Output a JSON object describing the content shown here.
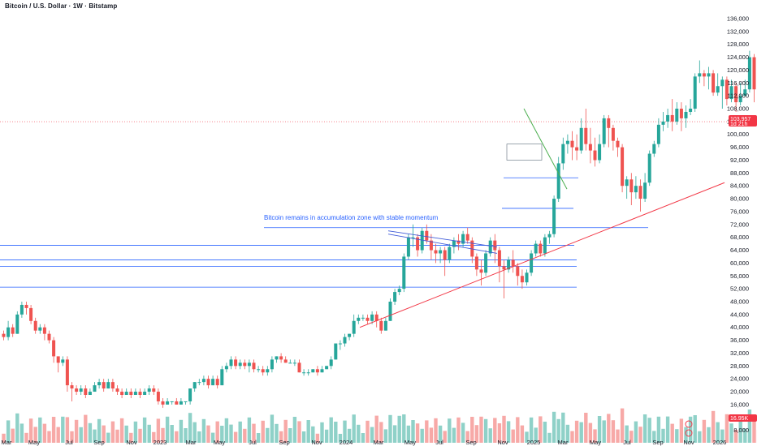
{
  "title": "Bitcoin / U.S. Dollar · 1W · Bitstamp",
  "annotation": "Bitcoin remains in accumulation zone with stable momentum",
  "price_tag": {
    "price": "103,957",
    "countdown": "1d 21h",
    "volume": "16.95K"
  },
  "colors": {
    "up": "#26a69a",
    "down": "#ef5350",
    "up_vol": "#8fd1c8",
    "down_vol": "#f7a9a7",
    "hline": "#2962ff",
    "trendline": "#f23645",
    "wedge": "#3f5bd8",
    "flag": "#4caf50"
  },
  "chart_data": {
    "type": "candlestick",
    "title": "Bitcoin / U.S. Dollar · 1W · Bitstamp",
    "y_ticks": [
      "136,000",
      "132,000",
      "128,000",
      "124,000",
      "120,000",
      "116,000",
      "112,000",
      "108,000",
      "104,000",
      "100,000",
      "96,000",
      "92,000",
      "88,000",
      "84,000",
      "80,000",
      "76,000",
      "72,000",
      "68,000",
      "64,000",
      "60,000",
      "56,000",
      "52,000",
      "48,000",
      "44,000",
      "40,000",
      "36,000",
      "32,000",
      "28,000",
      "24,000",
      "20,000",
      "16,000",
      "12,000",
      "8,000"
    ],
    "x_ticks": [
      "Mar",
      "May",
      "Jul",
      "Sep",
      "Nov",
      "2023",
      "Mar",
      "May",
      "Jul",
      "Sep",
      "Nov",
      "2024",
      "Mar",
      "May",
      "Jul",
      "Sep",
      "Nov",
      "2025",
      "Mar",
      "May",
      "Jul",
      "Sep",
      "Nov",
      "2026"
    ],
    "ylim": [
      4000,
      138000
    ],
    "last_price": 103957,
    "horizontal_levels": [
      71000,
      65500,
      61000,
      59000,
      52500,
      86500,
      77000
    ],
    "trendline": {
      "from": [
        "2024-01-08",
        40000
      ],
      "to": [
        "2026-01-05",
        85000
      ]
    },
    "candles": [
      [
        38,
        37,
        39,
        36
      ],
      [
        37,
        40,
        42,
        36
      ],
      [
        40,
        38,
        41,
        37
      ],
      [
        38,
        44,
        45,
        38
      ],
      [
        44,
        47,
        48,
        43
      ],
      [
        47,
        46,
        48,
        44
      ],
      [
        46,
        42,
        47,
        41
      ],
      [
        42,
        39,
        43,
        38
      ],
      [
        39,
        40,
        41,
        38
      ],
      [
        40,
        38,
        41,
        36
      ],
      [
        38,
        36,
        39,
        35
      ],
      [
        36,
        31,
        37,
        29
      ],
      [
        31,
        29,
        31,
        26
      ],
      [
        29,
        30,
        31,
        28
      ],
      [
        30,
        22,
        31,
        20
      ],
      [
        22,
        21,
        23,
        17
      ],
      [
        21,
        20,
        22,
        19
      ],
      [
        20,
        21,
        22,
        19
      ],
      [
        21,
        19,
        22,
        18
      ],
      [
        19,
        20,
        21,
        19
      ],
      [
        20,
        22,
        23,
        20
      ],
      [
        22,
        23,
        24,
        21
      ],
      [
        23,
        21,
        24,
        20
      ],
      [
        21,
        23,
        24,
        21
      ],
      [
        23,
        21,
        24,
        20
      ],
      [
        21,
        20,
        22,
        19
      ],
      [
        20,
        19,
        21,
        18
      ],
      [
        19,
        20,
        21,
        19
      ],
      [
        20,
        19,
        21,
        18
      ],
      [
        19,
        20,
        21,
        19
      ],
      [
        20,
        19,
        21,
        18
      ],
      [
        19,
        20,
        21,
        19
      ],
      [
        20,
        21,
        22,
        19
      ],
      [
        21,
        20,
        22,
        19
      ],
      [
        20,
        17,
        21,
        16
      ],
      [
        17,
        16,
        18,
        15
      ],
      [
        16,
        17,
        18,
        16
      ],
      [
        17,
        17,
        17,
        16
      ],
      [
        17,
        16,
        18,
        16
      ],
      [
        16,
        17,
        18,
        16
      ],
      [
        17,
        17,
        17,
        16
      ],
      [
        17,
        21,
        21,
        16
      ],
      [
        21,
        23,
        23,
        20
      ],
      [
        23,
        23,
        24,
        22
      ],
      [
        23,
        24,
        25,
        22
      ],
      [
        24,
        22,
        25,
        21
      ],
      [
        22,
        24,
        25,
        22
      ],
      [
        24,
        22,
        25,
        21
      ],
      [
        22,
        27,
        28,
        22
      ],
      [
        27,
        28,
        29,
        26
      ],
      [
        28,
        30,
        31,
        27
      ],
      [
        30,
        28,
        31,
        27
      ],
      [
        28,
        29,
        30,
        27
      ],
      [
        29,
        28,
        30,
        27
      ],
      [
        28,
        29,
        30,
        26
      ],
      [
        29,
        27,
        30,
        26
      ],
      [
        27,
        27,
        28,
        26
      ],
      [
        27,
        26,
        28,
        25
      ],
      [
        26,
        27,
        28,
        25
      ],
      [
        27,
        30,
        31,
        26
      ],
      [
        30,
        31,
        31,
        29
      ],
      [
        31,
        30,
        32,
        29
      ],
      [
        30,
        29,
        31,
        29
      ],
      [
        29,
        29,
        30,
        29
      ],
      [
        29,
        29,
        30,
        28
      ],
      [
        29,
        26,
        30,
        26
      ],
      [
        26,
        26,
        27,
        25
      ],
      [
        26,
        26,
        27,
        25
      ],
      [
        26,
        27,
        27,
        26
      ],
      [
        27,
        26,
        28,
        25
      ],
      [
        26,
        27,
        28,
        26
      ],
      [
        27,
        28,
        28,
        27
      ],
      [
        28,
        30,
        31,
        27
      ],
      [
        30,
        35,
        35,
        30
      ],
      [
        35,
        35,
        36,
        33
      ],
      [
        35,
        37,
        38,
        34
      ],
      [
        37,
        38,
        38,
        36
      ],
      [
        38,
        42,
        44,
        37
      ],
      [
        42,
        43,
        44,
        41
      ],
      [
        43,
        43,
        44,
        42
      ],
      [
        43,
        42,
        44,
        41
      ],
      [
        42,
        44,
        45,
        41
      ],
      [
        44,
        42,
        45,
        40
      ],
      [
        42,
        39,
        43,
        38
      ],
      [
        39,
        42,
        43,
        39
      ],
      [
        42,
        48,
        49,
        42
      ],
      [
        48,
        51,
        52,
        47
      ],
      [
        51,
        52,
        53,
        50
      ],
      [
        52,
        62,
        63,
        51
      ],
      [
        62,
        68,
        69,
        61
      ],
      [
        68,
        68,
        72,
        65
      ],
      [
        68,
        64,
        69,
        62
      ],
      [
        64,
        70,
        71,
        63
      ],
      [
        70,
        67,
        72,
        66
      ],
      [
        67,
        64,
        69,
        61
      ],
      [
        64,
        63,
        66,
        60
      ],
      [
        63,
        64,
        65,
        60
      ],
      [
        64,
        61,
        65,
        56
      ],
      [
        61,
        65,
        66,
        60
      ],
      [
        65,
        67,
        68,
        63
      ],
      [
        67,
        66,
        69,
        64
      ],
      [
        66,
        69,
        70,
        65
      ],
      [
        69,
        67,
        71,
        66
      ],
      [
        67,
        62,
        68,
        60
      ],
      [
        62,
        58,
        63,
        56
      ],
      [
        58,
        57,
        61,
        53
      ],
      [
        57,
        63,
        64,
        56
      ],
      [
        63,
        67,
        68,
        62
      ],
      [
        67,
        64,
        69,
        60
      ],
      [
        64,
        59,
        65,
        54
      ],
      [
        59,
        58,
        61,
        49
      ],
      [
        58,
        61,
        62,
        57
      ],
      [
        61,
        59,
        64,
        57
      ],
      [
        59,
        56,
        60,
        53
      ],
      [
        56,
        54,
        58,
        52
      ],
      [
        54,
        57,
        58,
        53
      ],
      [
        57,
        63,
        64,
        56
      ],
      [
        63,
        66,
        67,
        62
      ],
      [
        66,
        63,
        67,
        62
      ],
      [
        63,
        68,
        69,
        62
      ],
      [
        68,
        69,
        70,
        66
      ],
      [
        69,
        80,
        81,
        68
      ],
      [
        80,
        91,
        93,
        79
      ],
      [
        91,
        97,
        99,
        89
      ],
      [
        97,
        98,
        100,
        94
      ],
      [
        98,
        96,
        101,
        92
      ],
      [
        96,
        95,
        100,
        92
      ],
      [
        95,
        102,
        105,
        94
      ],
      [
        102,
        97,
        108,
        95
      ],
      [
        97,
        95,
        102,
        91
      ],
      [
        95,
        92,
        99,
        90
      ],
      [
        92,
        97,
        100,
        91
      ],
      [
        97,
        105,
        106,
        96
      ],
      [
        105,
        102,
        106,
        96
      ],
      [
        102,
        98,
        103,
        95
      ],
      [
        98,
        96,
        99,
        93
      ],
      [
        96,
        84,
        97,
        82
      ],
      [
        84,
        86,
        87,
        80
      ],
      [
        86,
        82,
        88,
        78
      ],
      [
        82,
        84,
        87,
        80
      ],
      [
        84,
        80,
        86,
        76
      ],
      [
        80,
        85,
        88,
        79
      ],
      [
        85,
        94,
        95,
        84
      ],
      [
        94,
        97,
        98,
        93
      ],
      [
        97,
        103,
        105,
        96
      ],
      [
        103,
        104,
        107,
        101
      ],
      [
        104,
        106,
        108,
        102
      ],
      [
        106,
        104,
        111,
        101
      ],
      [
        104,
        108,
        110,
        103
      ],
      [
        108,
        105,
        110,
        101
      ],
      [
        105,
        107,
        109,
        102
      ],
      [
        107,
        108,
        111,
        106
      ],
      [
        108,
        118,
        119,
        107
      ],
      [
        118,
        119,
        123,
        116
      ],
      [
        119,
        118,
        120,
        115
      ],
      [
        118,
        119,
        121,
        114
      ],
      [
        119,
        113,
        120,
        112
      ],
      [
        113,
        115,
        119,
        112
      ],
      [
        115,
        117,
        118,
        108
      ],
      [
        117,
        111,
        118,
        109
      ],
      [
        111,
        115,
        117,
        110
      ],
      [
        115,
        110,
        116,
        107
      ],
      [
        110,
        112,
        116,
        109
      ],
      [
        112,
        114,
        117,
        112
      ],
      [
        114,
        124,
        126,
        113
      ],
      [
        124,
        114,
        125,
        110
      ],
      [
        114,
        110,
        116,
        107
      ],
      [
        110,
        113,
        116,
        106
      ],
      [
        113,
        106,
        114,
        103
      ],
      [
        106,
        104,
        107,
        99
      ]
    ]
  }
}
